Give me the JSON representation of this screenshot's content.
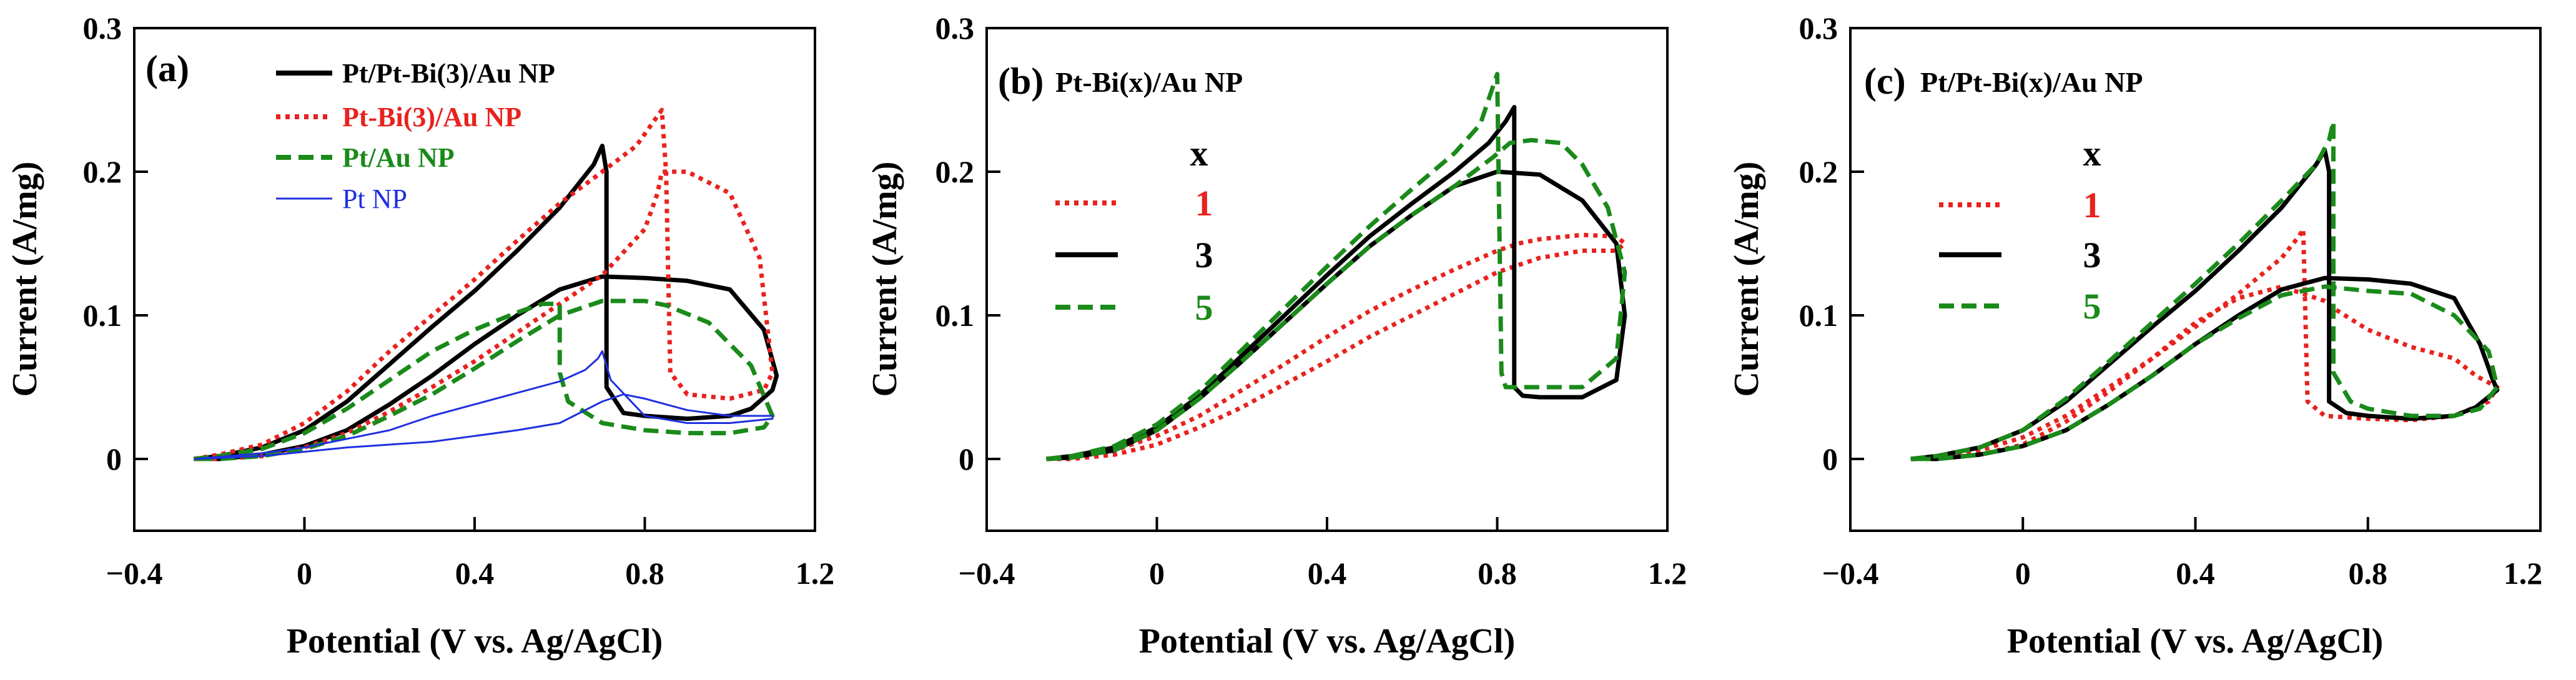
{
  "figure": {
    "xlabel": "Potential (V vs. Ag/AgCl)",
    "ylabel": "Current (A/mg)",
    "xticks": [
      "−0.4",
      "0",
      "0.4",
      "0.8",
      "1.2"
    ],
    "yticks": [
      "0",
      "0.1",
      "0.2",
      "0.3"
    ]
  },
  "colors": {
    "black": "#000000",
    "red": "#e8221e",
    "green": "#1a8a1a",
    "blue": "#1f2fe0"
  },
  "chart_data": [
    {
      "type": "line",
      "panel": "(a)",
      "title": "",
      "xlabel": "Potential (V vs. Ag/AgCl)",
      "ylabel": "Current (A/mg)",
      "xlim": [
        -0.4,
        1.2
      ],
      "ylim": [
        -0.05,
        0.3
      ],
      "legend_position": "top-left",
      "series": [
        {
          "name": "Pt/Pt-Bi(3)/Au NP",
          "color": "#000000",
          "style": "solid",
          "width": 7,
          "x": [
            -0.26,
            -0.2,
            -0.1,
            0.0,
            0.1,
            0.2,
            0.3,
            0.4,
            0.5,
            0.6,
            0.68,
            0.7,
            0.71,
            0.71,
            0.75,
            0.8,
            0.9,
            1.0,
            1.05,
            1.1,
            1.11,
            1.08,
            1.0,
            0.9,
            0.8,
            0.7,
            0.6,
            0.5,
            0.4,
            0.3,
            0.2,
            0.1,
            0.0,
            -0.1,
            -0.2,
            -0.26
          ],
          "y": [
            0.0,
            0.002,
            0.008,
            0.02,
            0.04,
            0.066,
            0.092,
            0.117,
            0.145,
            0.175,
            0.205,
            0.218,
            0.2,
            0.05,
            0.032,
            0.03,
            0.028,
            0.03,
            0.035,
            0.048,
            0.058,
            0.09,
            0.118,
            0.124,
            0.126,
            0.127,
            0.118,
            0.1,
            0.08,
            0.058,
            0.038,
            0.02,
            0.009,
            0.003,
            0.0,
            0.0
          ]
        },
        {
          "name": "Pt-Bi(3)/Au NP",
          "color": "#e8221e",
          "style": "dotted",
          "width": 7,
          "x": [
            -0.26,
            -0.2,
            -0.1,
            0.0,
            0.1,
            0.2,
            0.3,
            0.4,
            0.5,
            0.6,
            0.7,
            0.78,
            0.84,
            0.85,
            0.86,
            0.9,
            1.0,
            1.08,
            1.1,
            1.07,
            1.0,
            0.9,
            0.84,
            0.83,
            0.8,
            0.7,
            0.6,
            0.5,
            0.4,
            0.3,
            0.2,
            0.1,
            0.0,
            -0.1,
            -0.2,
            -0.26
          ],
          "y": [
            0.0,
            0.003,
            0.01,
            0.025,
            0.047,
            0.075,
            0.1,
            0.125,
            0.152,
            0.178,
            0.2,
            0.218,
            0.243,
            0.2,
            0.06,
            0.045,
            0.042,
            0.048,
            0.06,
            0.14,
            0.185,
            0.2,
            0.2,
            0.185,
            0.16,
            0.128,
            0.108,
            0.088,
            0.068,
            0.05,
            0.033,
            0.018,
            0.008,
            0.002,
            0.0,
            0.0
          ]
        },
        {
          "name": "Pt/Au NP",
          "color": "#1a8a1a",
          "style": "dashed",
          "width": 7,
          "x": [
            -0.26,
            -0.2,
            -0.1,
            0.0,
            0.1,
            0.2,
            0.3,
            0.4,
            0.5,
            0.56,
            0.6,
            0.6,
            0.62,
            0.7,
            0.8,
            0.9,
            1.0,
            1.08,
            1.1,
            1.05,
            0.95,
            0.85,
            0.8,
            0.7,
            0.6,
            0.5,
            0.4,
            0.3,
            0.2,
            0.1,
            0.0,
            -0.1,
            -0.2,
            -0.26
          ],
          "y": [
            0.0,
            0.002,
            0.007,
            0.018,
            0.035,
            0.055,
            0.075,
            0.09,
            0.102,
            0.108,
            0.108,
            0.06,
            0.04,
            0.025,
            0.02,
            0.018,
            0.018,
            0.022,
            0.03,
            0.065,
            0.095,
            0.107,
            0.11,
            0.11,
            0.1,
            0.082,
            0.063,
            0.045,
            0.03,
            0.016,
            0.007,
            0.002,
            0.0,
            0.0
          ]
        },
        {
          "name": "Pt NP",
          "color": "#1f2fe0",
          "style": "solid",
          "width": 3,
          "x": [
            -0.26,
            -0.1,
            0.0,
            0.1,
            0.2,
            0.3,
            0.4,
            0.5,
            0.6,
            0.66,
            0.69,
            0.7,
            0.72,
            0.8,
            0.9,
            1.0,
            1.1,
            1.1,
            1.0,
            0.9,
            0.8,
            0.75,
            0.7,
            0.6,
            0.5,
            0.4,
            0.3,
            0.2,
            0.1,
            0.0,
            -0.1,
            -0.26
          ],
          "y": [
            0.0,
            0.004,
            0.008,
            0.014,
            0.02,
            0.03,
            0.038,
            0.046,
            0.054,
            0.062,
            0.07,
            0.075,
            0.055,
            0.03,
            0.025,
            0.025,
            0.028,
            0.03,
            0.03,
            0.034,
            0.042,
            0.045,
            0.04,
            0.025,
            0.02,
            0.016,
            0.012,
            0.01,
            0.008,
            0.005,
            0.002,
            0.0
          ]
        }
      ]
    },
    {
      "type": "line",
      "panel": "(b)",
      "title": "Pt-Bi(x)/Au NP",
      "xlabel": "Potential (V vs. Ag/AgCl)",
      "ylabel": "Current (A/mg)",
      "xlim": [
        -0.4,
        1.2
      ],
      "ylim": [
        -0.05,
        0.3
      ],
      "legend_title": "x",
      "legend_position": "left",
      "series": [
        {
          "name": "1",
          "color": "#e8221e",
          "style": "dotted",
          "width": 7,
          "x": [
            -0.26,
            -0.2,
            -0.1,
            0.0,
            0.1,
            0.2,
            0.3,
            0.4,
            0.5,
            0.6,
            0.7,
            0.8,
            0.85,
            0.9,
            1.0,
            1.08,
            1.1,
            1.08,
            1.0,
            0.9,
            0.8,
            0.7,
            0.6,
            0.5,
            0.4,
            0.3,
            0.2,
            0.1,
            0.0,
            -0.1,
            -0.2,
            -0.26
          ],
          "y": [
            0.0,
            0.002,
            0.006,
            0.016,
            0.03,
            0.048,
            0.066,
            0.085,
            0.103,
            0.118,
            0.132,
            0.145,
            0.15,
            0.153,
            0.156,
            0.155,
            0.15,
            0.145,
            0.145,
            0.14,
            0.13,
            0.115,
            0.1,
            0.085,
            0.068,
            0.052,
            0.036,
            0.022,
            0.01,
            0.003,
            0.0,
            0.0
          ]
        },
        {
          "name": "3",
          "color": "#000000",
          "style": "solid",
          "width": 7,
          "x": [
            -0.26,
            -0.2,
            -0.1,
            0.0,
            0.1,
            0.2,
            0.3,
            0.4,
            0.5,
            0.6,
            0.7,
            0.78,
            0.82,
            0.84,
            0.84,
            0.86,
            0.9,
            1.0,
            1.08,
            1.1,
            1.08,
            1.0,
            0.9,
            0.8,
            0.7,
            0.6,
            0.5,
            0.4,
            0.3,
            0.2,
            0.1,
            0.0,
            -0.1,
            -0.2,
            -0.26
          ],
          "y": [
            0.0,
            0.002,
            0.008,
            0.022,
            0.044,
            0.072,
            0.1,
            0.128,
            0.155,
            0.178,
            0.2,
            0.22,
            0.235,
            0.245,
            0.05,
            0.044,
            0.043,
            0.043,
            0.055,
            0.1,
            0.15,
            0.18,
            0.198,
            0.2,
            0.19,
            0.17,
            0.148,
            0.122,
            0.095,
            0.068,
            0.042,
            0.02,
            0.006,
            0.001,
            0.0
          ]
        },
        {
          "name": "5",
          "color": "#1a8a1a",
          "style": "dashed",
          "width": 7,
          "x": [
            -0.26,
            -0.2,
            -0.1,
            0.0,
            0.1,
            0.2,
            0.3,
            0.4,
            0.5,
            0.6,
            0.7,
            0.76,
            0.8,
            0.81,
            0.82,
            0.9,
            1.0,
            1.08,
            1.1,
            1.06,
            1.0,
            0.95,
            0.88,
            0.83,
            0.79,
            0.7,
            0.6,
            0.5,
            0.4,
            0.3,
            0.2,
            0.1,
            0.0,
            -0.1,
            -0.2,
            -0.26
          ],
          "y": [
            0.0,
            0.002,
            0.009,
            0.024,
            0.047,
            0.076,
            0.105,
            0.134,
            0.162,
            0.188,
            0.213,
            0.233,
            0.268,
            0.06,
            0.05,
            0.05,
            0.05,
            0.07,
            0.13,
            0.175,
            0.205,
            0.22,
            0.222,
            0.22,
            0.21,
            0.19,
            0.17,
            0.148,
            0.122,
            0.095,
            0.068,
            0.042,
            0.02,
            0.006,
            0.001,
            0.0
          ]
        }
      ]
    },
    {
      "type": "line",
      "panel": "(c)",
      "title": "Pt/Pt-Bi(x)/Au NP",
      "xlabel": "Potential (V vs. Ag/AgCl)",
      "ylabel": "Current (A/mg)",
      "xlim": [
        -0.4,
        1.2
      ],
      "ylim": [
        -0.05,
        0.3
      ],
      "legend_title": "x",
      "legend_position": "left",
      "series": [
        {
          "name": "1",
          "color": "#e8221e",
          "style": "dotted",
          "width": 7,
          "x": [
            -0.26,
            -0.2,
            -0.1,
            0.0,
            0.1,
            0.2,
            0.3,
            0.4,
            0.5,
            0.6,
            0.64,
            0.65,
            0.66,
            0.7,
            0.8,
            0.9,
            1.0,
            1.08,
            1.1,
            1.05,
            1.0,
            0.9,
            0.8,
            0.72,
            0.7,
            0.6,
            0.5,
            0.4,
            0.3,
            0.2,
            0.1,
            0.0,
            -0.1,
            -0.2,
            -0.26
          ],
          "y": [
            0.0,
            0.002,
            0.006,
            0.015,
            0.03,
            0.05,
            0.07,
            0.092,
            0.115,
            0.14,
            0.155,
            0.16,
            0.04,
            0.03,
            0.028,
            0.027,
            0.03,
            0.04,
            0.05,
            0.058,
            0.07,
            0.078,
            0.09,
            0.105,
            0.11,
            0.12,
            0.112,
            0.095,
            0.07,
            0.047,
            0.026,
            0.01,
            0.003,
            0.0,
            0.0
          ]
        },
        {
          "name": "3",
          "color": "#000000",
          "style": "solid",
          "width": 7,
          "x": [
            -0.26,
            -0.2,
            -0.1,
            0.0,
            0.1,
            0.2,
            0.3,
            0.4,
            0.5,
            0.6,
            0.68,
            0.7,
            0.71,
            0.71,
            0.75,
            0.8,
            0.9,
            1.0,
            1.05,
            1.1,
            1.09,
            1.06,
            1.0,
            0.9,
            0.8,
            0.7,
            0.6,
            0.5,
            0.4,
            0.3,
            0.2,
            0.1,
            0.0,
            -0.1,
            -0.2,
            -0.26
          ],
          "y": [
            0.0,
            0.002,
            0.008,
            0.02,
            0.04,
            0.066,
            0.092,
            0.117,
            0.145,
            0.175,
            0.205,
            0.215,
            0.2,
            0.04,
            0.032,
            0.03,
            0.028,
            0.03,
            0.036,
            0.048,
            0.055,
            0.08,
            0.112,
            0.122,
            0.125,
            0.126,
            0.118,
            0.1,
            0.08,
            0.058,
            0.038,
            0.02,
            0.009,
            0.003,
            0.0,
            0.0
          ]
        },
        {
          "name": "5",
          "color": "#1a8a1a",
          "style": "dashed",
          "width": 7,
          "x": [
            -0.26,
            -0.2,
            -0.1,
            0.0,
            0.1,
            0.2,
            0.3,
            0.4,
            0.5,
            0.6,
            0.68,
            0.71,
            0.72,
            0.72,
            0.76,
            0.8,
            0.9,
            1.0,
            1.06,
            1.1,
            1.08,
            1.0,
            0.9,
            0.8,
            0.7,
            0.6,
            0.5,
            0.4,
            0.3,
            0.2,
            0.1,
            0.0,
            -0.1,
            -0.2,
            -0.26
          ],
          "y": [
            0.0,
            0.002,
            0.008,
            0.02,
            0.042,
            0.068,
            0.095,
            0.122,
            0.15,
            0.18,
            0.205,
            0.222,
            0.235,
            0.06,
            0.04,
            0.035,
            0.03,
            0.03,
            0.035,
            0.05,
            0.075,
            0.1,
            0.115,
            0.117,
            0.12,
            0.114,
            0.098,
            0.08,
            0.058,
            0.038,
            0.02,
            0.009,
            0.003,
            0.0,
            0.0
          ]
        }
      ]
    }
  ]
}
